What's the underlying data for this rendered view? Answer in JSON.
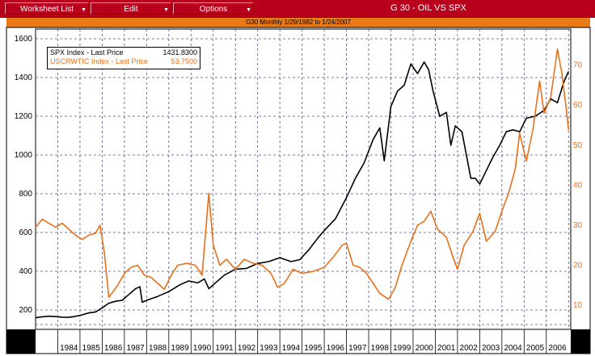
{
  "menu": {
    "worksheet_list": "Worksheet List",
    "edit": "Edit",
    "options": "Options"
  },
  "window_title": "G 30 - OIL VS SPX",
  "graph_title": "G30 Monthly 1/29/1982 to 1/24/2007",
  "legend": {
    "spx_label": "SPX Index - Last Price",
    "spx_value": "1431.8300",
    "oil_label": "USCRWTIC Index - Last Price",
    "oil_value": "53.7500"
  },
  "colors": {
    "spx": "#000000",
    "oil": "#e8701a",
    "titlebar": "#b8001c",
    "header_band": "#e87a18"
  },
  "chart_data": {
    "type": "line",
    "title": "G 30 - OIL VS SPX",
    "subtitle": "G30 Monthly 1/29/1982 to 1/24/2007",
    "xlabel": "",
    "ylabel": "",
    "x_tick_labels": [
      "1984",
      "1985",
      "1986",
      "1987",
      "1988",
      "1989",
      "1990",
      "1991",
      "1992",
      "1993",
      "1994",
      "1995",
      "1996",
      "1997",
      "1998",
      "1999",
      "2000",
      "2001",
      "2002",
      "2003",
      "2004",
      "2005",
      "2006"
    ],
    "xlim": [
      1983.0,
      2007.1
    ],
    "left_axis": {
      "ylim": [
        100,
        1650
      ],
      "ticks": [
        200,
        400,
        600,
        800,
        1000,
        1200,
        1400,
        1600
      ]
    },
    "right_axis": {
      "ylim": [
        4,
        79
      ],
      "ticks": [
        10,
        20,
        30,
        40,
        50,
        60,
        70
      ]
    },
    "grid": true,
    "legend_position": "top-left",
    "series": [
      {
        "name": "SPX Index - Last Price",
        "axis": "left",
        "points": [
          [
            1983.0,
            160
          ],
          [
            1983.3,
            165
          ],
          [
            1983.6,
            168
          ],
          [
            1983.9,
            166
          ],
          [
            1984.2,
            163
          ],
          [
            1984.5,
            162
          ],
          [
            1984.8,
            167
          ],
          [
            1985.1,
            175
          ],
          [
            1985.4,
            185
          ],
          [
            1985.7,
            190
          ],
          [
            1986.0,
            211
          ],
          [
            1986.3,
            235
          ],
          [
            1986.6,
            245
          ],
          [
            1986.9,
            250
          ],
          [
            1987.2,
            280
          ],
          [
            1987.5,
            310
          ],
          [
            1987.7,
            320
          ],
          [
            1987.8,
            240
          ],
          [
            1988.0,
            250
          ],
          [
            1988.5,
            270
          ],
          [
            1989.0,
            295
          ],
          [
            1989.5,
            330
          ],
          [
            1989.9,
            350
          ],
          [
            1990.3,
            340
          ],
          [
            1990.6,
            360
          ],
          [
            1990.8,
            310
          ],
          [
            1991.0,
            330
          ],
          [
            1991.5,
            380
          ],
          [
            1992.0,
            410
          ],
          [
            1992.5,
            415
          ],
          [
            1993.0,
            440
          ],
          [
            1993.5,
            450
          ],
          [
            1994.0,
            470
          ],
          [
            1994.5,
            450
          ],
          [
            1994.9,
            460
          ],
          [
            1995.3,
            510
          ],
          [
            1995.7,
            570
          ],
          [
            1996.0,
            610
          ],
          [
            1996.5,
            670
          ],
          [
            1997.0,
            780
          ],
          [
            1997.4,
            880
          ],
          [
            1997.8,
            960
          ],
          [
            1998.2,
            1080
          ],
          [
            1998.5,
            1140
          ],
          [
            1998.7,
            970
          ],
          [
            1999.0,
            1250
          ],
          [
            1999.3,
            1330
          ],
          [
            1999.6,
            1360
          ],
          [
            1999.9,
            1470
          ],
          [
            2000.2,
            1420
          ],
          [
            2000.5,
            1480
          ],
          [
            2000.7,
            1440
          ],
          [
            2000.9,
            1330
          ],
          [
            2001.2,
            1200
          ],
          [
            2001.5,
            1220
          ],
          [
            2001.7,
            1050
          ],
          [
            2001.9,
            1150
          ],
          [
            2002.2,
            1120
          ],
          [
            2002.4,
            1000
          ],
          [
            2002.6,
            880
          ],
          [
            2002.8,
            880
          ],
          [
            2003.0,
            850
          ],
          [
            2003.3,
            920
          ],
          [
            2003.6,
            990
          ],
          [
            2003.9,
            1050
          ],
          [
            2004.2,
            1120
          ],
          [
            2004.5,
            1130
          ],
          [
            2004.8,
            1120
          ],
          [
            2005.1,
            1190
          ],
          [
            2005.5,
            1200
          ],
          [
            2005.9,
            1230
          ],
          [
            2006.2,
            1290
          ],
          [
            2006.5,
            1270
          ],
          [
            2006.8,
            1380
          ],
          [
            2007.0,
            1431.83
          ]
        ]
      },
      {
        "name": "USCRWTIC Index - Last Price",
        "axis": "right",
        "points": [
          [
            1983.0,
            29.5
          ],
          [
            1983.3,
            31.5
          ],
          [
            1983.6,
            30.5
          ],
          [
            1983.9,
            29.5
          ],
          [
            1984.2,
            30.5
          ],
          [
            1984.5,
            29.0
          ],
          [
            1984.8,
            27.5
          ],
          [
            1985.1,
            26.5
          ],
          [
            1985.4,
            27.5
          ],
          [
            1985.7,
            28.0
          ],
          [
            1985.9,
            30.0
          ],
          [
            1986.1,
            23.0
          ],
          [
            1986.3,
            12.0
          ],
          [
            1986.5,
            13.5
          ],
          [
            1986.7,
            15.0
          ],
          [
            1987.0,
            18.0
          ],
          [
            1987.3,
            19.5
          ],
          [
            1987.6,
            20.0
          ],
          [
            1987.9,
            17.5
          ],
          [
            1988.2,
            17.0
          ],
          [
            1988.5,
            15.5
          ],
          [
            1988.8,
            14.0
          ],
          [
            1989.1,
            17.5
          ],
          [
            1989.4,
            20.0
          ],
          [
            1989.8,
            20.5
          ],
          [
            1990.2,
            20.0
          ],
          [
            1990.5,
            17.5
          ],
          [
            1990.8,
            38.0
          ],
          [
            1991.0,
            25.0
          ],
          [
            1991.3,
            20.0
          ],
          [
            1991.6,
            21.5
          ],
          [
            1992.0,
            19.0
          ],
          [
            1992.4,
            21.5
          ],
          [
            1992.8,
            20.5
          ],
          [
            1993.2,
            20.0
          ],
          [
            1993.6,
            18.0
          ],
          [
            1993.9,
            14.5
          ],
          [
            1994.2,
            15.5
          ],
          [
            1994.6,
            19.0
          ],
          [
            1995.0,
            18.0
          ],
          [
            1995.5,
            18.5
          ],
          [
            1996.0,
            19.5
          ],
          [
            1996.4,
            22.0
          ],
          [
            1996.8,
            25.0
          ],
          [
            1997.0,
            25.5
          ],
          [
            1997.3,
            20.0
          ],
          [
            1997.6,
            19.5
          ],
          [
            1997.9,
            18.0
          ],
          [
            1998.2,
            15.5
          ],
          [
            1998.5,
            13.0
          ],
          [
            1998.9,
            11.5
          ],
          [
            1999.2,
            14.5
          ],
          [
            1999.5,
            20.0
          ],
          [
            1999.9,
            26.0
          ],
          [
            2000.2,
            30.0
          ],
          [
            2000.5,
            31.0
          ],
          [
            2000.8,
            33.5
          ],
          [
            2001.1,
            29.0
          ],
          [
            2001.5,
            27.0
          ],
          [
            2001.8,
            22.0
          ],
          [
            2002.0,
            19.0
          ],
          [
            2002.3,
            25.0
          ],
          [
            2002.7,
            28.5
          ],
          [
            2003.0,
            33.0
          ],
          [
            2003.3,
            26.0
          ],
          [
            2003.7,
            28.5
          ],
          [
            2004.0,
            33.5
          ],
          [
            2004.3,
            38.0
          ],
          [
            2004.6,
            44.0
          ],
          [
            2004.8,
            53.0
          ],
          [
            2005.1,
            46.0
          ],
          [
            2005.4,
            54.0
          ],
          [
            2005.7,
            66.0
          ],
          [
            2005.9,
            58.0
          ],
          [
            2006.2,
            62.0
          ],
          [
            2006.5,
            74.0
          ],
          [
            2006.7,
            68.0
          ],
          [
            2006.9,
            59.0
          ],
          [
            2007.0,
            53.75
          ]
        ]
      }
    ]
  }
}
